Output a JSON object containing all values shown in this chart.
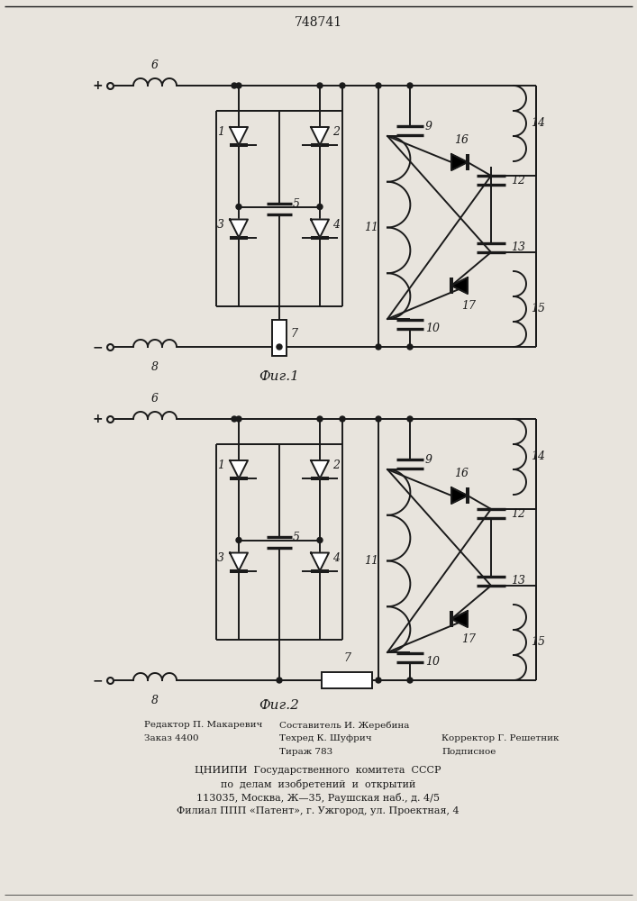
{
  "title": "748741",
  "fig1_label": "Фиг.1",
  "fig2_label": "Фиг.2",
  "bg_color": "#e8e4dd",
  "line_color": "#1a1a1a",
  "lw": 1.4
}
